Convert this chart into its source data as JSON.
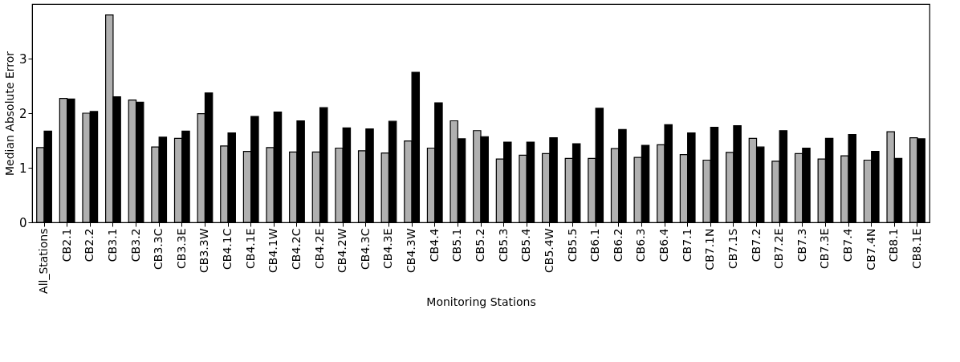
{
  "chart_data": {
    "type": "bar",
    "xlabel": "Monitoring Stations",
    "ylabel": "Median Absolute Error",
    "categories": [
      "All_Stations",
      "CB2.1",
      "CB2.2",
      "CB3.1",
      "CB3.2",
      "CB3.3C",
      "CB3.3E",
      "CB3.3W",
      "CB4.1C",
      "CB4.1E",
      "CB4.1W",
      "CB4.2C",
      "CB4.2E",
      "CB4.2W",
      "CB4.3C",
      "CB4.3E",
      "CB4.3W",
      "CB4.4",
      "CB5.1",
      "CB5.2",
      "CB5.3",
      "CB5.4",
      "CB5.4W",
      "CB5.5",
      "CB6.1",
      "CB6.2",
      "CB6.3",
      "CB6.4",
      "CB7.1",
      "CB7.1N",
      "CB7.1S",
      "CB7.2",
      "CB7.2E",
      "CB7.3",
      "CB7.3E",
      "CB7.4",
      "CB7.4N",
      "CB8.1",
      "CB8.1E"
    ],
    "series": [
      {
        "color": "#b0b0b0",
        "values": [
          1.37,
          2.27,
          2.0,
          3.8,
          2.24,
          1.38,
          1.54,
          1.99,
          1.4,
          1.3,
          1.37,
          1.29,
          1.29,
          1.36,
          1.31,
          1.27,
          1.49,
          1.36,
          1.86,
          1.68,
          1.16,
          1.23,
          1.26,
          1.17,
          1.17,
          1.35,
          1.19,
          1.42,
          1.24,
          1.14,
          1.28,
          1.54,
          1.12,
          1.26,
          1.16,
          1.22,
          1.14,
          1.66,
          1.55
        ]
      },
      {
        "color": "#000000",
        "values": [
          1.67,
          2.26,
          2.03,
          2.3,
          2.2,
          1.56,
          1.67,
          2.37,
          1.64,
          1.94,
          2.02,
          1.86,
          2.1,
          1.73,
          1.71,
          1.85,
          2.75,
          2.19,
          1.53,
          1.57,
          1.47,
          1.47,
          1.55,
          1.44,
          2.09,
          1.7,
          1.41,
          1.79,
          1.64,
          1.74,
          1.77,
          1.38,
          1.68,
          1.36,
          1.54,
          1.61,
          1.3,
          1.17,
          1.53
        ]
      }
    ],
    "ylim": [
      0,
      4
    ],
    "yticks": [
      0,
      1,
      2,
      3
    ],
    "grid": false,
    "legend": false
  }
}
